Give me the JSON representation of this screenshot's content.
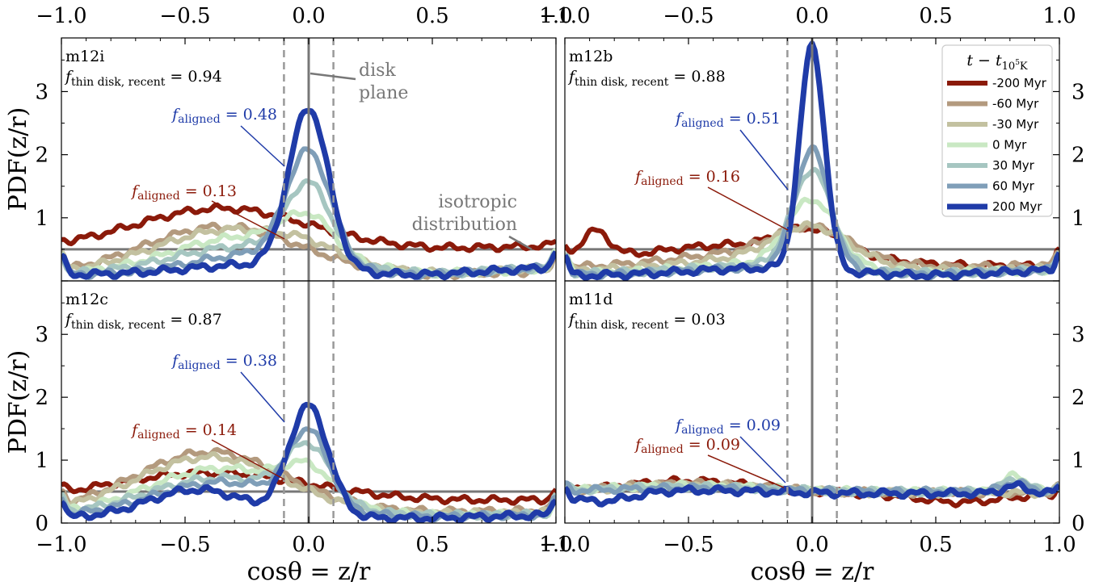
{
  "chart_data": {
    "type": "line",
    "xlabel": "cosθ = z/r",
    "ylabel": "PDF(z/r)",
    "xlim": [
      -1.0,
      1.0
    ],
    "ylim": [
      0,
      3.85
    ],
    "xticks": [
      "−1.0",
      "−0.5",
      "0.0",
      "0.5",
      "1.0"
    ],
    "yticks": [
      "0",
      "1",
      "2",
      "3"
    ],
    "isotropic_level": 0.5,
    "disk_band": [
      -0.1,
      0.1
    ],
    "legend": {
      "title_t": "t",
      "title_minus": "−",
      "title_sub_t": "t",
      "title_sub": "10",
      "title_sup": "5",
      "title_K": "K",
      "placement": "top-right",
      "entries": [
        "-200 Myr",
        "-60 Myr",
        "-30 Myr",
        "0 Myr",
        "30 Myr",
        "60 Myr",
        "200 Myr"
      ],
      "colors": [
        "#8b1a0a",
        "#b39a7e",
        "#c3c1a0",
        "#c9e8c3",
        "#a6c6c1",
        "#7f9eb8",
        "#1f3ba8"
      ]
    },
    "annotations": {
      "disk_line1": "disk",
      "disk_line2": "plane",
      "iso_line1": "isotropic",
      "iso_line2": "distribution"
    },
    "fthin_symbol": "f",
    "fthin_sub": "thin disk, recent",
    "faligned_symbol": "f",
    "faligned_sub": "aligned",
    "panels": [
      {
        "name": "m12i",
        "fthin": "0.94",
        "f_aligned_early": "0.13",
        "f_aligned_late": "0.48",
        "params": [
          {
            "peak": 0.0,
            "w": 0.1,
            "left": 0.65,
            "mu": -0.35,
            "sig": 0.35,
            "floor": 0.5,
            "rise": 0.06
          },
          {
            "peak": 0.0,
            "w": 0.1,
            "left": 0.78,
            "mu": -0.35,
            "sig": 0.32,
            "floor": 0.08,
            "rise": 0.08
          },
          {
            "peak": 0.1,
            "w": 0.1,
            "left": 0.72,
            "mu": -0.3,
            "sig": 0.32,
            "floor": 0.1,
            "rise": 0.1
          },
          {
            "peak": 0.55,
            "w": 0.1,
            "left": 0.6,
            "mu": -0.25,
            "sig": 0.3,
            "floor": 0.1,
            "rise": 0.1
          },
          {
            "peak": 1.15,
            "w": 0.09,
            "left": 0.45,
            "mu": -0.25,
            "sig": 0.3,
            "floor": 0.1,
            "rise": 0.12
          },
          {
            "peak": 1.75,
            "w": 0.09,
            "left": 0.32,
            "mu": -0.22,
            "sig": 0.25,
            "floor": 0.1,
            "rise": 0.12
          },
          {
            "peak": 2.55,
            "w": 0.08,
            "left": 0.15,
            "mu": -0.25,
            "sig": 0.25,
            "floor": 0.1,
            "rise": 0.12
          }
        ]
      },
      {
        "name": "m12b",
        "fthin": "0.88",
        "f_aligned_early": "0.16",
        "f_aligned_late": "0.51",
        "params": [
          {
            "peak": 0.35,
            "w": 0.12,
            "left": 0.35,
            "mu": -0.3,
            "sig": 0.4,
            "floor": 0.22,
            "rise": 0.02,
            "bump": 0.45
          },
          {
            "peak": 0.45,
            "w": 0.15,
            "left": 0.25,
            "mu": -0.2,
            "sig": 0.35,
            "floor": 0.2,
            "rise": 0.05
          },
          {
            "peak": 0.55,
            "w": 0.15,
            "left": 0.2,
            "mu": -0.2,
            "sig": 0.35,
            "floor": 0.15,
            "rise": 0.05
          },
          {
            "peak": 1.05,
            "w": 0.1,
            "left": 0.15,
            "mu": -0.2,
            "sig": 0.3,
            "floor": 0.12,
            "rise": 0.06
          },
          {
            "peak": 1.55,
            "w": 0.08,
            "left": 0.12,
            "mu": -0.2,
            "sig": 0.3,
            "floor": 0.12,
            "rise": 0.06
          },
          {
            "peak": 1.9,
            "w": 0.07,
            "left": 0.1,
            "mu": -0.2,
            "sig": 0.3,
            "floor": 0.1,
            "rise": 0.08
          },
          {
            "peak": 3.55,
            "w": 0.05,
            "left": 0.12,
            "mu": -0.2,
            "sig": 0.3,
            "floor": 0.08,
            "rise": 0.1
          }
        ]
      },
      {
        "name": "m12c",
        "fthin": "0.87",
        "f_aligned_early": "0.14",
        "f_aligned_late": "0.38",
        "params": [
          {
            "peak": 0.0,
            "w": 0.1,
            "left": 0.45,
            "mu": -0.4,
            "sig": 0.4,
            "floor": 0.35,
            "rise": 0.02
          },
          {
            "peak": 0.0,
            "w": 0.1,
            "left": 0.95,
            "mu": -0.4,
            "sig": 0.3,
            "floor": 0.18,
            "rise": 0.02
          },
          {
            "peak": 0.0,
            "w": 0.1,
            "left": 0.9,
            "mu": -0.4,
            "sig": 0.3,
            "floor": 0.15,
            "rise": 0.02
          },
          {
            "peak": 0.45,
            "w": 0.1,
            "left": 0.75,
            "mu": -0.35,
            "sig": 0.3,
            "floor": 0.12,
            "rise": 0.02
          },
          {
            "peak": 0.85,
            "w": 0.09,
            "left": 0.6,
            "mu": -0.35,
            "sig": 0.3,
            "floor": 0.12,
            "rise": 0.02
          },
          {
            "peak": 1.15,
            "w": 0.08,
            "left": 0.55,
            "mu": -0.35,
            "sig": 0.28,
            "floor": 0.1,
            "rise": 0.03
          },
          {
            "peak": 1.75,
            "w": 0.08,
            "left": 0.45,
            "mu": -0.45,
            "sig": 0.2,
            "floor": 0.08,
            "rise": 0.05
          }
        ]
      },
      {
        "name": "m11d",
        "fthin": "0.03",
        "f_aligned_early": "0.09",
        "f_aligned_late": "0.09",
        "params": [
          {
            "peak": 0.0,
            "w": 0.1,
            "left": 0.22,
            "mu": -0.5,
            "sig": 0.3,
            "floor": 0.45,
            "rise": 0.0,
            "dip": 0.12
          },
          {
            "peak": 0.0,
            "w": 0.1,
            "left": 0.15,
            "mu": -0.5,
            "sig": 0.3,
            "floor": 0.48,
            "rise": 0.0
          },
          {
            "peak": 0.0,
            "w": 0.1,
            "left": 0.12,
            "mu": -0.5,
            "sig": 0.3,
            "floor": 0.48,
            "rise": 0.0
          },
          {
            "peak": 0.0,
            "w": 0.1,
            "left": 0.1,
            "mu": -0.5,
            "sig": 0.3,
            "floor": 0.5,
            "rise": 0.0,
            "bump2": 0.25
          },
          {
            "peak": 0.0,
            "w": 0.1,
            "left": 0.08,
            "mu": -0.5,
            "sig": 0.3,
            "floor": 0.5,
            "rise": 0.0,
            "bump2": 0.2
          },
          {
            "peak": 0.0,
            "w": 0.1,
            "left": 0.06,
            "mu": -0.5,
            "sig": 0.3,
            "floor": 0.5,
            "rise": 0.0,
            "bump2": 0.15
          },
          {
            "peak": 0.0,
            "w": 0.1,
            "left": 0.05,
            "mu": -0.5,
            "sig": 0.3,
            "floor": 0.47,
            "rise": 0.0,
            "bump2": 0.12,
            "lowleft": 0.15
          }
        ]
      }
    ]
  }
}
